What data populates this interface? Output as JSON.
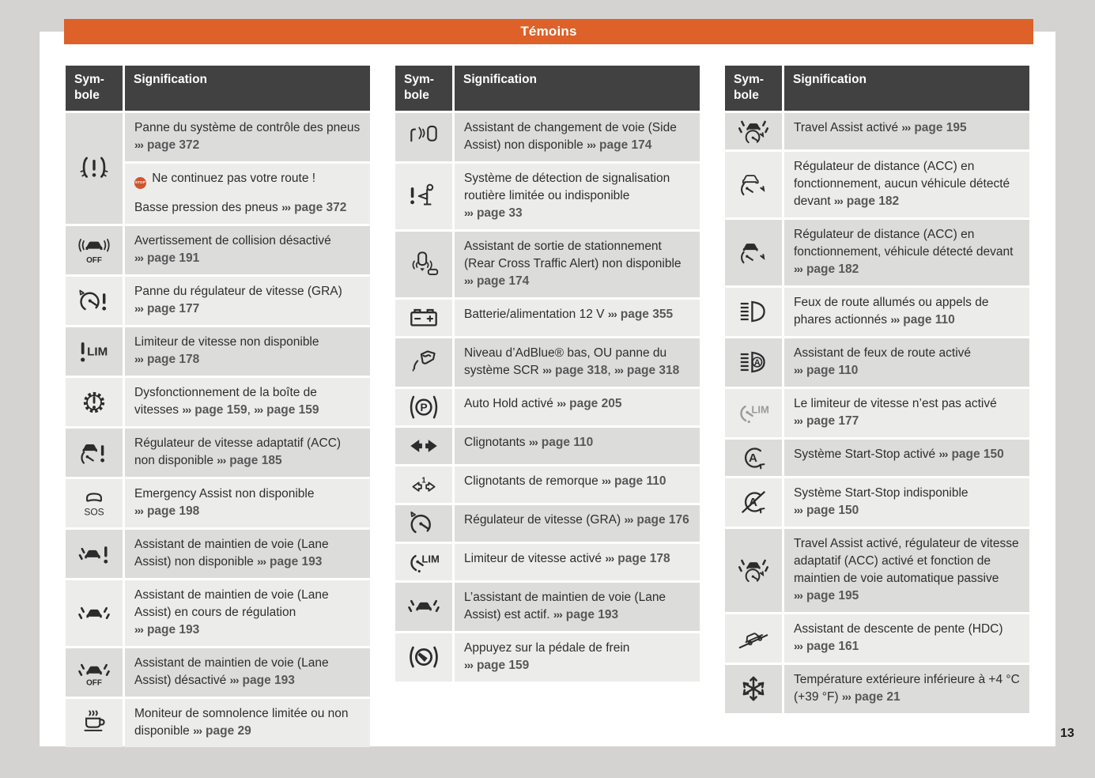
{
  "page": {
    "title": "Témoins",
    "number": "13",
    "background": "#d5d3d1",
    "accent": "#dd6129"
  },
  "table_header": {
    "symbol_line1": "Sym-",
    "symbol_line2": "bole",
    "signification": "Signification"
  },
  "ref_marker": "›››",
  "stop_label": "STOP",
  "columns": [
    {
      "rows": [
        {
          "icon": "tire-pressure-warning",
          "shade": "dark",
          "cells": [
            {
              "shade": "dark",
              "paras": [
                [
                  {
                    "t": "text",
                    "v": "Panne du système de contrôle des pneus "
                  },
                  {
                    "t": "ref",
                    "v": "page 372"
                  }
                ]
              ]
            },
            {
              "shade": "light",
              "paras": [
                [
                  {
                    "t": "stop"
                  },
                  {
                    "t": "text",
                    "v": " Ne continuez pas votre route !"
                  }
                ],
                [
                  {
                    "t": "text",
                    "v": "Basse pression des pneus "
                  },
                  {
                    "t": "ref",
                    "v": "page 372"
                  }
                ]
              ]
            }
          ]
        },
        {
          "icon": "collision-warning-off",
          "shade": "dark",
          "cells": [
            {
              "shade": "dark",
              "paras": [
                [
                  {
                    "t": "text",
                    "v": "Avertissement de collision désactivé "
                  },
                  {
                    "t": "ref",
                    "v": "page 191"
                  }
                ]
              ]
            }
          ]
        },
        {
          "icon": "cruise-control-fault",
          "shade": "light",
          "cells": [
            {
              "shade": "light",
              "paras": [
                [
                  {
                    "t": "text",
                    "v": "Panne du régulateur de vitesse (GRA) "
                  },
                  {
                    "t": "ref",
                    "v": "page 177"
                  }
                ]
              ]
            }
          ]
        },
        {
          "icon": "speed-limiter-not-available",
          "shade": "dark",
          "cells": [
            {
              "shade": "dark",
              "paras": [
                [
                  {
                    "t": "text",
                    "v": "Limiteur de vitesse non disponible "
                  },
                  {
                    "t": "ref",
                    "v": "page 178"
                  }
                ]
              ]
            }
          ]
        },
        {
          "icon": "gearbox-malfunction",
          "shade": "light",
          "cells": [
            {
              "shade": "light",
              "paras": [
                [
                  {
                    "t": "text",
                    "v": "Dysfonctionnement de la boîte de vitesses "
                  },
                  {
                    "t": "ref",
                    "v": "page 159"
                  },
                  {
                    "t": "text",
                    "v": ", "
                  },
                  {
                    "t": "ref",
                    "v": "page 159"
                  }
                ]
              ]
            }
          ]
        },
        {
          "icon": "acc-not-available",
          "shade": "dark",
          "cells": [
            {
              "shade": "dark",
              "paras": [
                [
                  {
                    "t": "text",
                    "v": "Régulateur de vitesse adaptatif (ACC) non disponible "
                  },
                  {
                    "t": "ref",
                    "v": "page 185"
                  }
                ]
              ]
            }
          ]
        },
        {
          "icon": "emergency-assist",
          "shade": "light",
          "cells": [
            {
              "shade": "light",
              "paras": [
                [
                  {
                    "t": "text",
                    "v": "Emergency Assist non disponible "
                  },
                  {
                    "t": "ref",
                    "v": "page 198"
                  }
                ]
              ]
            }
          ]
        },
        {
          "icon": "lane-assist-warning",
          "shade": "dark",
          "cells": [
            {
              "shade": "dark",
              "paras": [
                [
                  {
                    "t": "text",
                    "v": "Assistant de maintien de voie (Lane Assist) non disponible "
                  },
                  {
                    "t": "ref",
                    "v": "page 193"
                  }
                ]
              ]
            }
          ]
        },
        {
          "icon": "lane-assist",
          "shade": "light",
          "cells": [
            {
              "shade": "light",
              "paras": [
                [
                  {
                    "t": "text",
                    "v": "Assistant de maintien de voie (Lane Assist) en cours de régulation "
                  },
                  {
                    "t": "ref",
                    "v": "page 193"
                  }
                ]
              ]
            }
          ]
        },
        {
          "icon": "lane-assist-off",
          "shade": "dark",
          "cells": [
            {
              "shade": "dark",
              "paras": [
                [
                  {
                    "t": "text",
                    "v": "Assistant de maintien de voie (Lane Assist) désactivé "
                  },
                  {
                    "t": "ref",
                    "v": "page 193"
                  }
                ]
              ]
            }
          ]
        },
        {
          "icon": "drowsiness-monitor",
          "shade": "light",
          "cells": [
            {
              "shade": "light",
              "paras": [
                [
                  {
                    "t": "text",
                    "v": "Moniteur de somnolence limitée ou non disponible "
                  },
                  {
                    "t": "ref",
                    "v": "page 29"
                  }
                ]
              ]
            }
          ]
        }
      ]
    },
    {
      "rows": [
        {
          "icon": "side-assist",
          "shade": "dark",
          "cells": [
            {
              "shade": "dark",
              "paras": [
                [
                  {
                    "t": "text",
                    "v": "Assistant de changement de voie (Side Assist) non disponible "
                  },
                  {
                    "t": "ref",
                    "v": "page 174"
                  }
                ]
              ]
            }
          ]
        },
        {
          "icon": "traffic-sign-detection",
          "shade": "light",
          "cells": [
            {
              "shade": "light",
              "paras": [
                [
                  {
                    "t": "text",
                    "v": "Système de détection de signalisation routière limitée ou indisponible "
                  },
                  {
                    "t": "ref",
                    "v": "page 33"
                  }
                ]
              ]
            }
          ]
        },
        {
          "icon": "rear-cross-traffic",
          "shade": "dark",
          "cells": [
            {
              "shade": "dark",
              "paras": [
                [
                  {
                    "t": "text",
                    "v": "Assistant de sortie de stationnement (Rear Cross Traffic Alert) non disponible "
                  },
                  {
                    "t": "ref",
                    "v": "page 174"
                  }
                ]
              ]
            }
          ]
        },
        {
          "icon": "battery",
          "shade": "light",
          "cells": [
            {
              "shade": "light",
              "paras": [
                [
                  {
                    "t": "text",
                    "v": "Batterie/alimentation 12 V "
                  },
                  {
                    "t": "ref",
                    "v": "page 355"
                  }
                ]
              ]
            }
          ]
        },
        {
          "icon": "adblue",
          "shade": "dark",
          "cells": [
            {
              "shade": "dark",
              "paras": [
                [
                  {
                    "t": "text",
                    "v": "Niveau d’AdBlue® bas, OU panne du système SCR "
                  },
                  {
                    "t": "ref",
                    "v": "page 318"
                  },
                  {
                    "t": "text",
                    "v": ", "
                  },
                  {
                    "t": "ref",
                    "v": "page 318"
                  }
                ]
              ]
            }
          ]
        },
        {
          "icon": "auto-hold",
          "shade": "light",
          "cells": [
            {
              "shade": "light",
              "paras": [
                [
                  {
                    "t": "text",
                    "v": "Auto Hold activé "
                  },
                  {
                    "t": "ref",
                    "v": "page 205"
                  }
                ]
              ]
            }
          ]
        },
        {
          "icon": "turn-signals",
          "shade": "dark",
          "cells": [
            {
              "shade": "dark",
              "paras": [
                [
                  {
                    "t": "text",
                    "v": "Clignotants "
                  },
                  {
                    "t": "ref",
                    "v": "page 110"
                  }
                ]
              ]
            }
          ]
        },
        {
          "icon": "trailer-turn-signals",
          "shade": "light",
          "cells": [
            {
              "shade": "light",
              "paras": [
                [
                  {
                    "t": "text",
                    "v": "Clignotants de remorque "
                  },
                  {
                    "t": "ref",
                    "v": "page 110"
                  }
                ]
              ]
            }
          ]
        },
        {
          "icon": "cruise-control",
          "shade": "dark",
          "cells": [
            {
              "shade": "dark",
              "paras": [
                [
                  {
                    "t": "text",
                    "v": "Régulateur de vitesse (GRA) "
                  },
                  {
                    "t": "ref",
                    "v": "page 176"
                  }
                ]
              ]
            }
          ]
        },
        {
          "icon": "speed-limiter",
          "shade": "light",
          "cells": [
            {
              "shade": "light",
              "paras": [
                [
                  {
                    "t": "text",
                    "v": "Limiteur de vitesse activé "
                  },
                  {
                    "t": "ref",
                    "v": "page 178"
                  }
                ]
              ]
            }
          ]
        },
        {
          "icon": "lane-assist",
          "shade": "dark",
          "cells": [
            {
              "shade": "dark",
              "paras": [
                [
                  {
                    "t": "text",
                    "v": "L’assistant de maintien de voie (Lane Assist) est actif. "
                  },
                  {
                    "t": "ref",
                    "v": "page 193"
                  }
                ]
              ]
            }
          ]
        },
        {
          "icon": "brake-pedal",
          "shade": "light",
          "cells": [
            {
              "shade": "light",
              "paras": [
                [
                  {
                    "t": "text",
                    "v": "Appuyez sur la pédale de frein "
                  },
                  {
                    "t": "ref",
                    "v": "page 159"
                  }
                ]
              ]
            }
          ]
        }
      ]
    },
    {
      "rows": [
        {
          "icon": "travel-assist",
          "shade": "dark",
          "cells": [
            {
              "shade": "dark",
              "paras": [
                [
                  {
                    "t": "text",
                    "v": "Travel Assist activé "
                  },
                  {
                    "t": "ref",
                    "v": "page 195"
                  }
                ]
              ]
            }
          ]
        },
        {
          "icon": "acc-no-vehicle",
          "shade": "light",
          "cells": [
            {
              "shade": "light",
              "paras": [
                [
                  {
                    "t": "text",
                    "v": "Régulateur de distance (ACC) en fonctionnement, aucun véhicule détecté devant "
                  },
                  {
                    "t": "ref",
                    "v": "page 182"
                  }
                ]
              ]
            }
          ]
        },
        {
          "icon": "acc-vehicle",
          "shade": "dark",
          "cells": [
            {
              "shade": "dark",
              "paras": [
                [
                  {
                    "t": "text",
                    "v": "Régulateur de distance (ACC) en fonctionnement, véhicule détecté devant "
                  },
                  {
                    "t": "ref",
                    "v": "page 182"
                  }
                ]
              ]
            }
          ]
        },
        {
          "icon": "high-beam",
          "shade": "light",
          "cells": [
            {
              "shade": "light",
              "paras": [
                [
                  {
                    "t": "text",
                    "v": "Feux de route allumés ou appels de phares actionnés "
                  },
                  {
                    "t": "ref",
                    "v": "page 110"
                  }
                ]
              ]
            }
          ]
        },
        {
          "icon": "high-beam-assist",
          "shade": "dark",
          "cells": [
            {
              "shade": "dark",
              "paras": [
                [
                  {
                    "t": "text",
                    "v": "Assistant de feux de route activé "
                  },
                  {
                    "t": "ref",
                    "v": "page 110"
                  }
                ]
              ]
            }
          ]
        },
        {
          "icon": "speed-limiter-gray",
          "shade": "light",
          "cells": [
            {
              "shade": "light",
              "paras": [
                [
                  {
                    "t": "text",
                    "v": "Le limiteur de vitesse n’est pas activé "
                  },
                  {
                    "t": "ref",
                    "v": "page 177"
                  }
                ]
              ]
            }
          ]
        },
        {
          "icon": "start-stop",
          "shade": "dark",
          "cells": [
            {
              "shade": "dark",
              "paras": [
                [
                  {
                    "t": "text",
                    "v": "Système Start-Stop activé "
                  },
                  {
                    "t": "ref",
                    "v": "page 150"
                  }
                ]
              ]
            }
          ]
        },
        {
          "icon": "start-stop-off",
          "shade": "light",
          "cells": [
            {
              "shade": "light",
              "paras": [
                [
                  {
                    "t": "text",
                    "v": "Système Start-Stop indisponible "
                  },
                  {
                    "t": "ref",
                    "v": "page 150"
                  }
                ]
              ]
            }
          ]
        },
        {
          "icon": "travel-assist",
          "shade": "dark",
          "cells": [
            {
              "shade": "dark",
              "paras": [
                [
                  {
                    "t": "text",
                    "v": "Travel Assist activé, régulateur de vitesse adaptatif (ACC) activé et fonction de maintien de voie automatique passive "
                  },
                  {
                    "t": "ref",
                    "v": "page 195"
                  }
                ]
              ]
            }
          ]
        },
        {
          "icon": "hdc",
          "shade": "light",
          "cells": [
            {
              "shade": "light",
              "paras": [
                [
                  {
                    "t": "text",
                    "v": "Assistant de descente de pente (HDC) "
                  },
                  {
                    "t": "ref",
                    "v": "page 161"
                  }
                ]
              ]
            }
          ]
        },
        {
          "icon": "snowflake",
          "shade": "dark",
          "cells": [
            {
              "shade": "dark",
              "paras": [
                [
                  {
                    "t": "text",
                    "v": "Température extérieure inférieure à +4 °C (+39 °F) "
                  },
                  {
                    "t": "ref",
                    "v": "page 21"
                  }
                ]
              ]
            }
          ]
        }
      ]
    }
  ]
}
